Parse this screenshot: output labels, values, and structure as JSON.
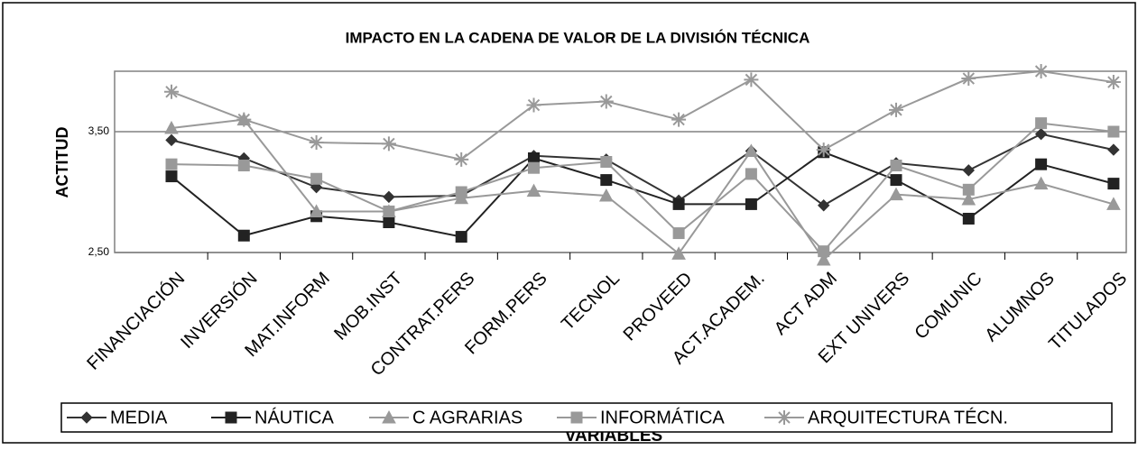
{
  "chart_data": {
    "type": "line",
    "title": "IMPACTO EN LA CADENA DE VALOR DE LA DIVISIÓN TÉCNICA",
    "y_label": "ACTITUD",
    "x_label": "VARIABLES",
    "categories": [
      "FINANCIACIÓN",
      "INVERSIÓN",
      "MAT.INFORM",
      "MOB.INST",
      "CONTRAT.PERS",
      "FORM.PERS",
      "TECNOL",
      "PROVEED",
      "ACT.ACADEM.",
      "ACT ADM",
      "EXT UNIVERS",
      "COMUNIC",
      "ALUMNOS",
      "TITULADOS"
    ],
    "series": [
      {
        "name": "MEDIA",
        "color": "#333333",
        "marker": "diamond",
        "values": [
          3.43,
          3.28,
          3.04,
          2.96,
          2.97,
          3.3,
          3.27,
          2.93,
          3.34,
          2.89,
          3.24,
          3.18,
          3.48,
          3.35
        ]
      },
      {
        "name": "NÁUTICA",
        "color": "#222222",
        "marker": "square",
        "values": [
          3.13,
          2.64,
          2.8,
          2.75,
          2.63,
          3.28,
          3.1,
          2.9,
          2.9,
          3.33,
          3.1,
          2.78,
          3.23,
          3.07
        ]
      },
      {
        "name": "C AGRARIAS",
        "color": "#999999",
        "marker": "triangle",
        "values": [
          3.53,
          3.6,
          2.84,
          2.84,
          2.95,
          3.01,
          2.97,
          2.49,
          3.34,
          2.44,
          2.98,
          2.94,
          3.07,
          2.9
        ]
      },
      {
        "name": "INFORMÁTICA",
        "color": "#999999",
        "marker": "square",
        "values": [
          3.23,
          3.22,
          3.11,
          2.84,
          3.0,
          3.2,
          3.25,
          2.66,
          3.15,
          2.51,
          3.22,
          3.02,
          3.57,
          3.5
        ]
      },
      {
        "name": "ARQUITECTURA TÉCN.",
        "color": "#999999",
        "marker": "star",
        "values": [
          3.83,
          3.6,
          3.41,
          3.4,
          3.27,
          3.72,
          3.75,
          3.6,
          3.93,
          3.35,
          3.68,
          3.94,
          4.0,
          3.91
        ]
      }
    ],
    "ylim": [
      2.5,
      4.0
    ],
    "yticks": [
      {
        "value": 2.5,
        "label": "2,50"
      },
      {
        "value": 3.5,
        "label": "3,50"
      }
    ],
    "grid": true,
    "legend": "bottom"
  }
}
